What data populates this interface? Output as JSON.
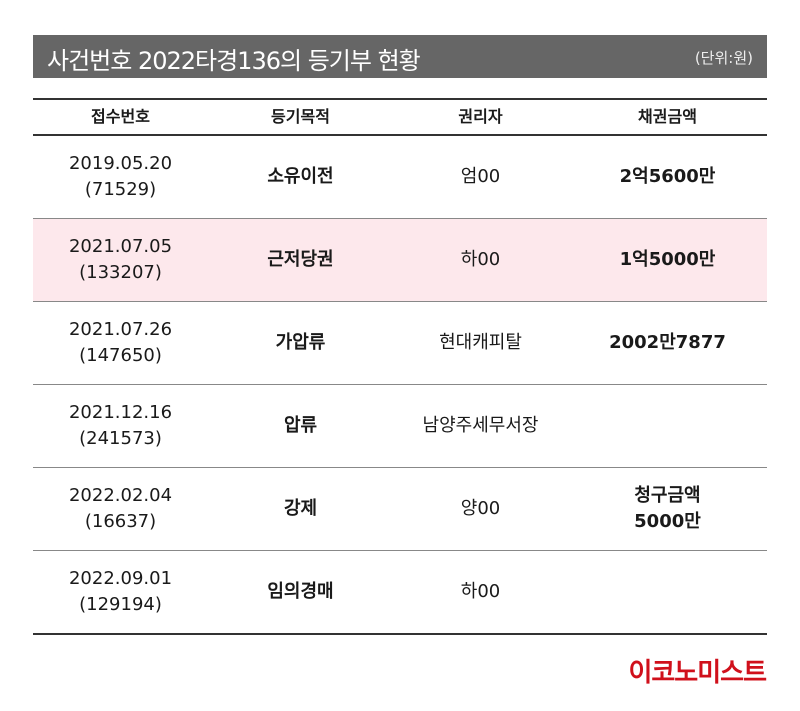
{
  "title": "사건번호 2022타경136의 등기부 현황",
  "unit": "(단위:원)",
  "columns": [
    "접수번호",
    "등기목적",
    "권리자",
    "채권금액"
  ],
  "rows": [
    {
      "date": "2019.05.20",
      "number": "(71529)",
      "purpose": "소유이전",
      "holder": "엄00",
      "amount": "2억5600만",
      "amount2": "",
      "highlighted": false
    },
    {
      "date": "2021.07.05",
      "number": "(133207)",
      "purpose": "근저당권",
      "holder": "하00",
      "amount": "1억5000만",
      "amount2": "",
      "highlighted": true
    },
    {
      "date": "2021.07.26",
      "number": "(147650)",
      "purpose": "가압류",
      "holder": "현대캐피탈",
      "amount": "2002만7877",
      "amount2": "",
      "highlighted": false
    },
    {
      "date": "2021.12.16",
      "number": "(241573)",
      "purpose": "압류",
      "holder": "남양주세무서장",
      "amount": "",
      "amount2": "",
      "highlighted": false
    },
    {
      "date": "2022.02.04",
      "number": "(16637)",
      "purpose": "강제",
      "holder": "양00",
      "amount": "청구금액",
      "amount2": "5000만",
      "highlighted": false
    },
    {
      "date": "2022.09.01",
      "number": "(129194)",
      "purpose": "임의경매",
      "holder": "하00",
      "amount": "",
      "amount2": "",
      "highlighted": false
    }
  ],
  "logo": "이코노미스트",
  "colors": {
    "title_bg": "#666666",
    "highlight_row": "#fde8ec",
    "logo": "#d0101b"
  }
}
